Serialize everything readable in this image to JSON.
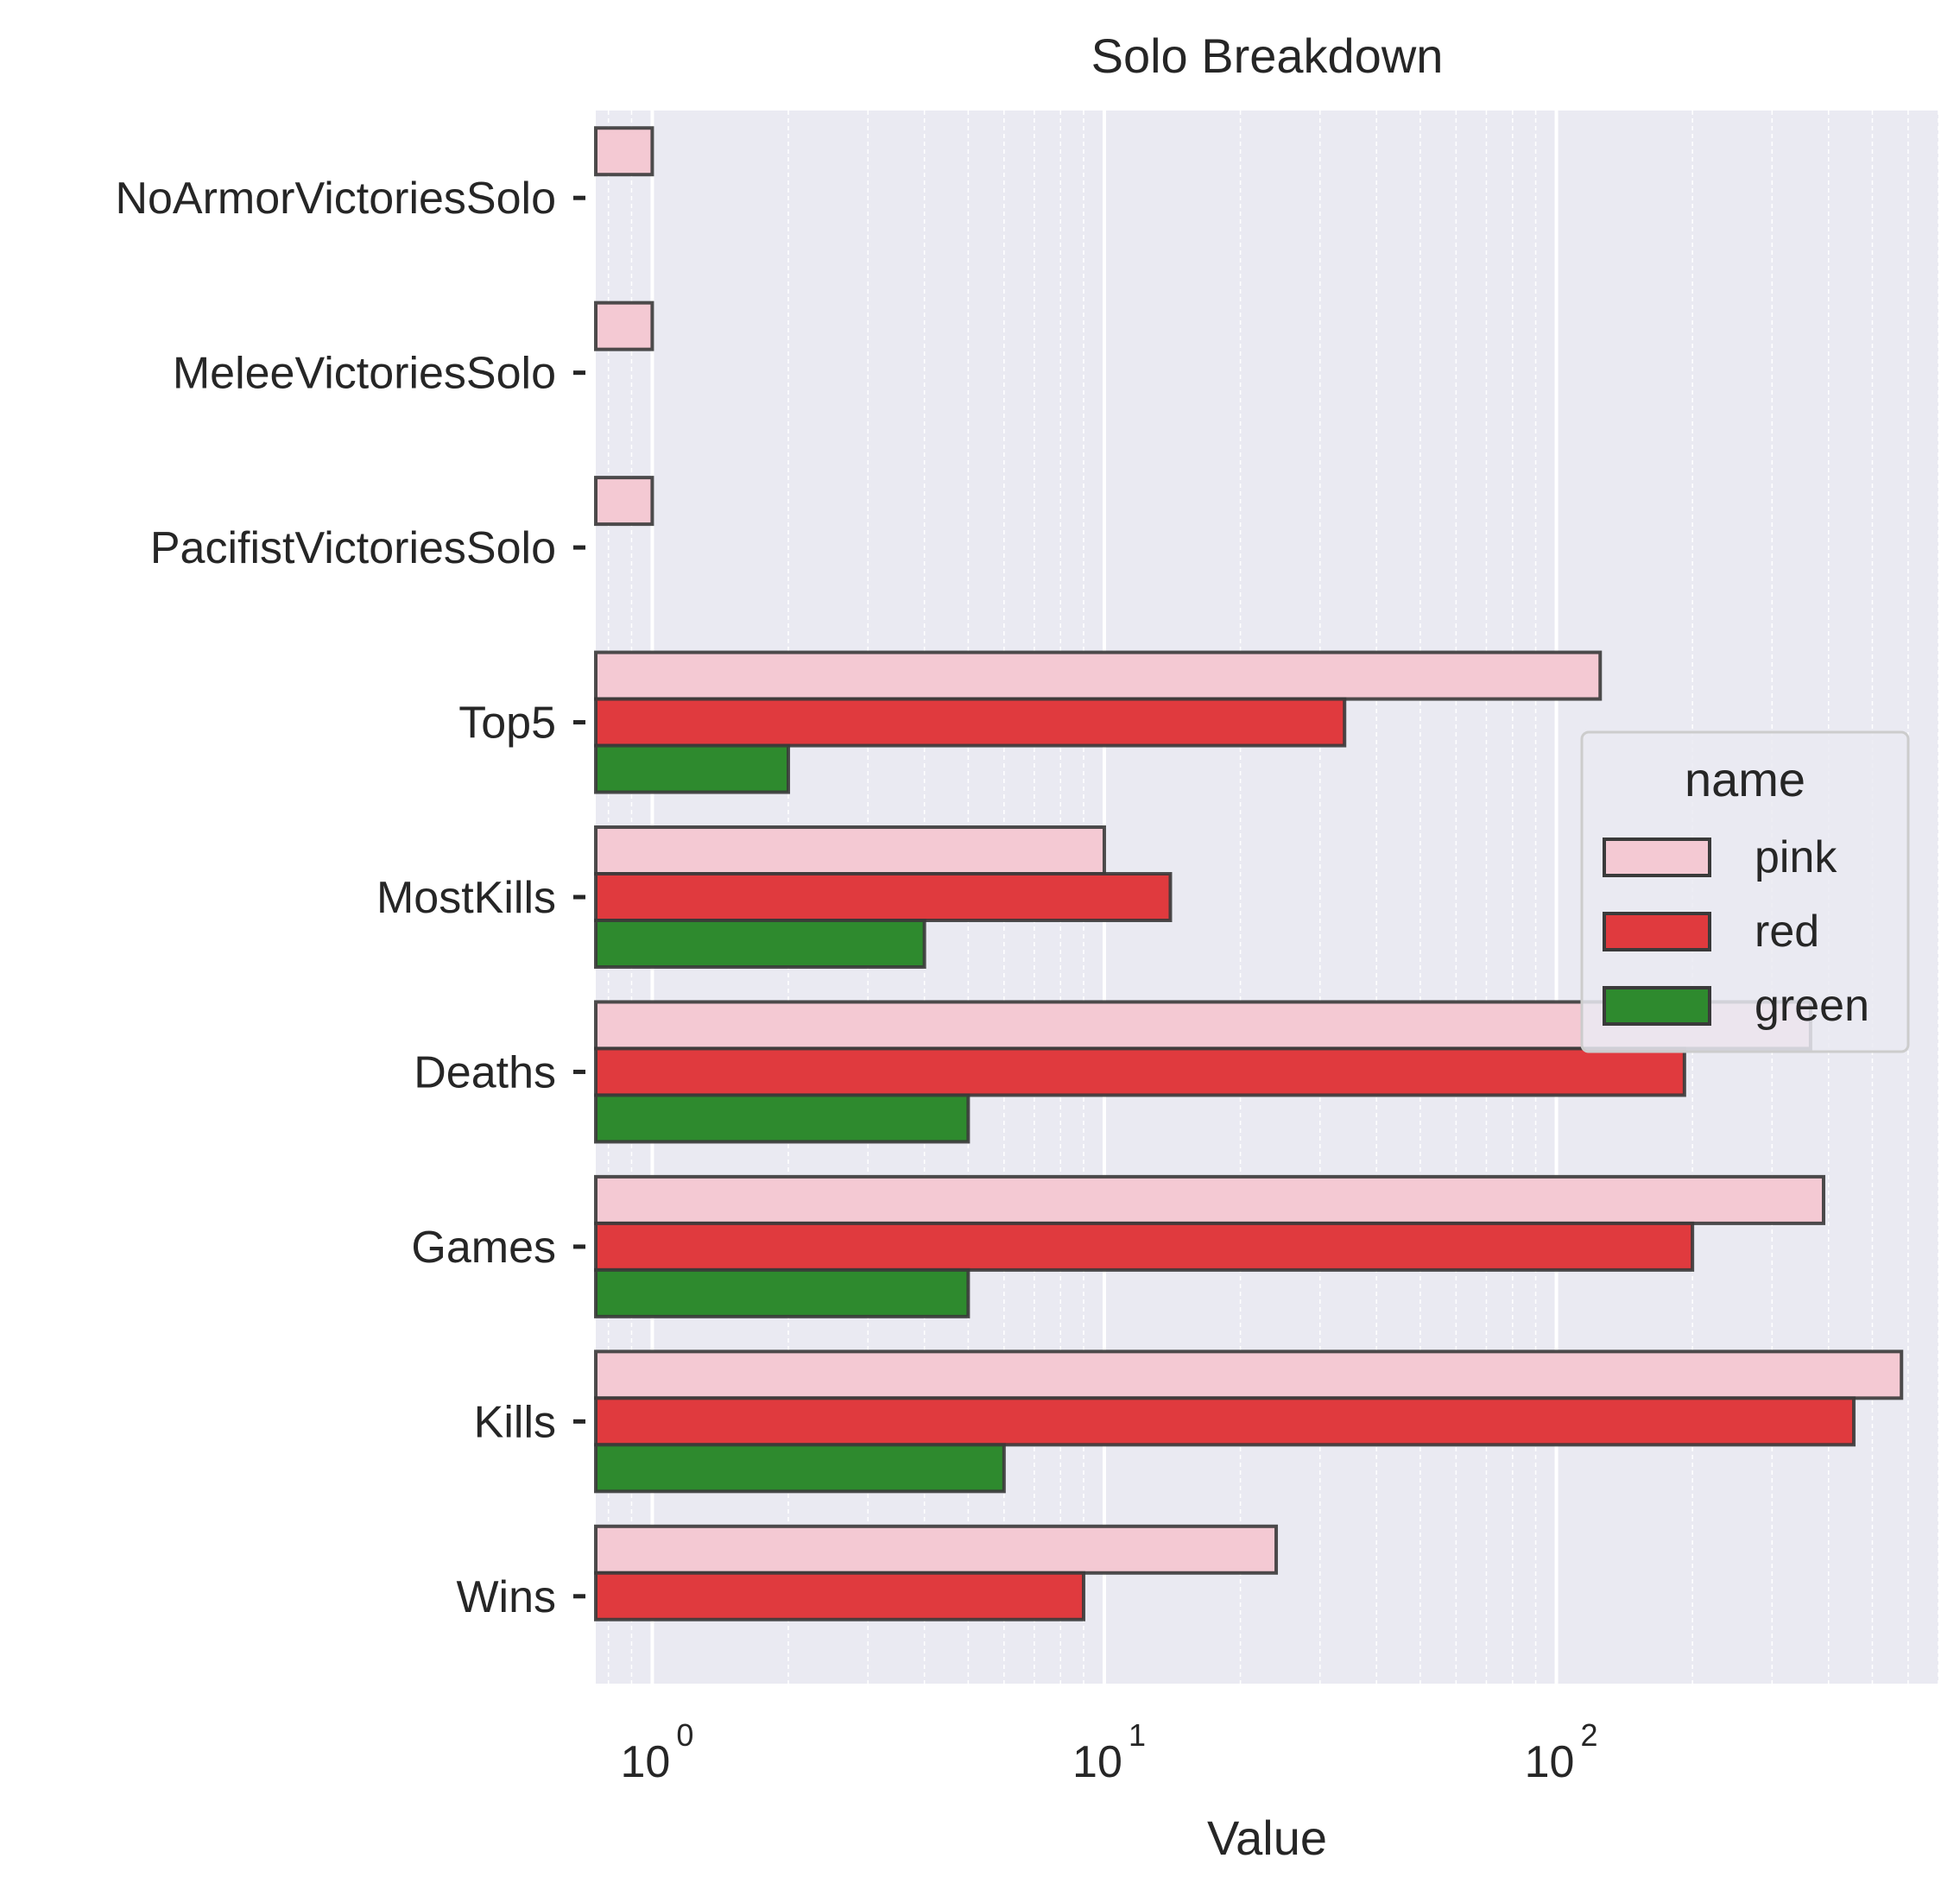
{
  "chart_data": {
    "type": "bar",
    "orientation": "horizontal",
    "title": "Solo Breakdown",
    "xlabel": "Value",
    "ylabel": "",
    "x_scale": "log",
    "xlim": [
      0.75,
      700
    ],
    "x_ticks": [
      {
        "base": "10",
        "exp": "0",
        "value": 1
      },
      {
        "base": "10",
        "exp": "1",
        "value": 10
      },
      {
        "base": "10",
        "exp": "2",
        "value": 100
      }
    ],
    "grid": true,
    "legend_position": "right",
    "categories": [
      "NoArmorVictoriesSolo",
      "MeleeVictoriesSolo",
      "PacifistVictoriesSolo",
      "Top5",
      "MostKills",
      "Deaths",
      "Games",
      "Kills",
      "Wins"
    ],
    "legend_title": "name",
    "series": [
      {
        "name": "pink",
        "color": "#f4c9d3",
        "values": [
          1,
          1,
          1,
          125,
          10,
          365,
          390,
          580,
          24
        ]
      },
      {
        "name": "red",
        "color": "#e03a3e",
        "values": [
          null,
          null,
          null,
          34,
          14,
          192,
          200,
          455,
          9
        ]
      },
      {
        "name": "green",
        "color": "#2e8a2e",
        "values": [
          null,
          null,
          null,
          2,
          4,
          5,
          5,
          6,
          null
        ]
      }
    ]
  }
}
